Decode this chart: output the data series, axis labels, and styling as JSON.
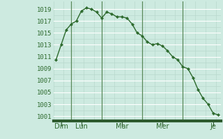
{
  "x_values": [
    0,
    1,
    2,
    3,
    4,
    5,
    6,
    7,
    8,
    9,
    10,
    11,
    12,
    13,
    14,
    15,
    16,
    17,
    18,
    19,
    20,
    21,
    22,
    23,
    24,
    25,
    26,
    27,
    28,
    29,
    30,
    31,
    32
  ],
  "y_values": [
    1010.5,
    1013.0,
    1015.5,
    1016.5,
    1017.0,
    1018.7,
    1019.2,
    1019.0,
    1018.5,
    1017.5,
    1018.5,
    1018.2,
    1017.7,
    1017.7,
    1017.5,
    1016.5,
    1015.0,
    1014.5,
    1013.5,
    1013.0,
    1013.2,
    1012.8,
    1012.0,
    1011.0,
    1010.5,
    1009.3,
    1009.0,
    1007.5,
    1005.5,
    1004.0,
    1003.0,
    1001.5,
    1001.2
  ],
  "day_tick_positions": [
    1,
    5,
    13,
    21,
    31
  ],
  "day_labels": [
    "Dim",
    "Lun",
    "Mar",
    "Mer",
    "Je"
  ],
  "day_vlines": [
    3,
    9,
    17,
    25
  ],
  "yticks": [
    1001,
    1003,
    1005,
    1007,
    1009,
    1011,
    1013,
    1015,
    1017,
    1019
  ],
  "ylim": [
    1000.2,
    1020.3
  ],
  "xlim": [
    -0.5,
    32.5
  ],
  "line_color": "#2d6a2d",
  "marker_color": "#2d6a2d",
  "bg_color": "#cdeae0",
  "grid_color_major": "#b8d8cc",
  "grid_color_white": "#ffffff",
  "vline_color": "#5a8a5a",
  "bottom_bar_color": "#2d5a2d",
  "tick_label_color": "#2d6a2d"
}
